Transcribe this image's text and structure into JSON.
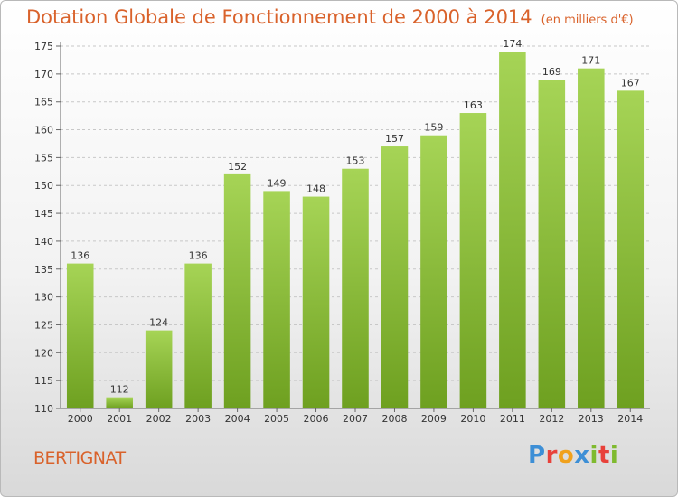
{
  "header": {
    "title": "Dotation Globale de Fonctionnement de 2000 à 2014",
    "unit": "(en milliers d'€)"
  },
  "footer": {
    "town": "BERTIGNAT",
    "logo_text": "Proxiti",
    "logo_colors": [
      "#3d8fd6",
      "#e8413a",
      "#f0a11c",
      "#3d8fd6",
      "#7fba2f",
      "#e8413a",
      "#7fba2f"
    ]
  },
  "colors": {
    "bar_light": "#a6d456",
    "bar_dark": "#6ea020",
    "accent": "#d9622b"
  },
  "chart_data": {
    "type": "bar",
    "title": "Dotation Globale de Fonctionnement de 2000 à 2014",
    "subtitle": "(en milliers d'€)",
    "xlabel": "",
    "ylabel": "",
    "categories": [
      "2000",
      "2001",
      "2002",
      "2003",
      "2004",
      "2005",
      "2006",
      "2007",
      "2008",
      "2009",
      "2010",
      "2011",
      "2012",
      "2013",
      "2014"
    ],
    "values": [
      136,
      112,
      124,
      136,
      152,
      149,
      148,
      153,
      157,
      159,
      163,
      174,
      169,
      171,
      167
    ],
    "ylim": [
      110,
      175
    ],
    "yticks": [
      110,
      115,
      120,
      125,
      130,
      135,
      140,
      145,
      150,
      155,
      160,
      165,
      170,
      175
    ],
    "grid": "horizontal-dashed",
    "legend": "none"
  }
}
